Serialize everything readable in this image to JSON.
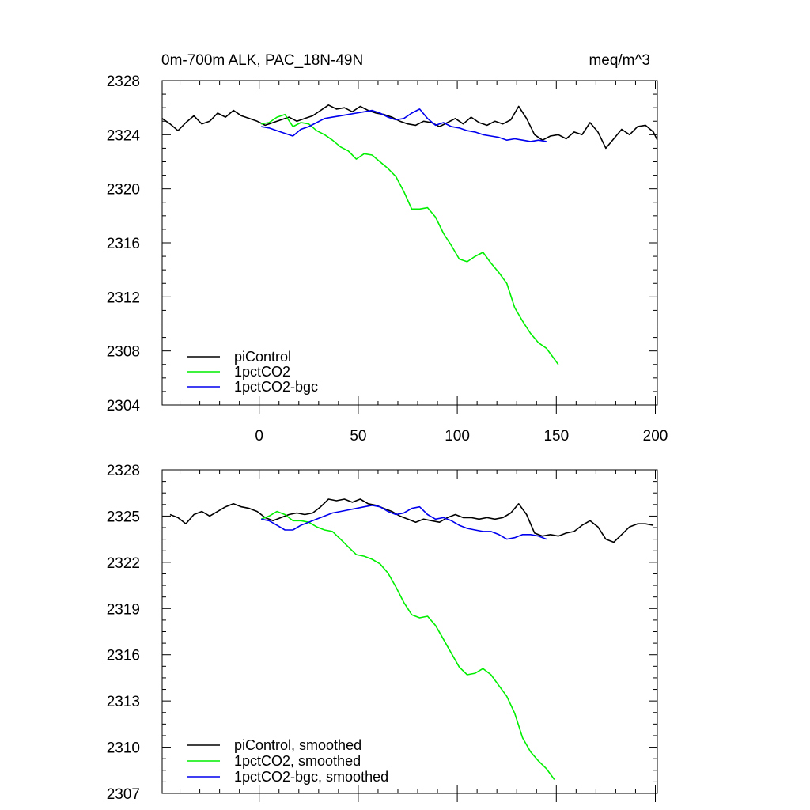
{
  "chart_data": [
    {
      "type": "line",
      "title": "0m-700m ALK, PAC_18N-49N",
      "units": "meq/m^3",
      "xlabel": "",
      "ylabel": "",
      "xlim": [
        -49,
        201
      ],
      "ylim": [
        2304,
        2328
      ],
      "xticks": [
        0,
        50,
        100,
        150,
        200
      ],
      "yticks": [
        2304,
        2308,
        2312,
        2316,
        2320,
        2324,
        2328
      ],
      "legend_position": "bottom-left",
      "series": [
        {
          "name": "piControl",
          "color": "#000000",
          "x": [
            -49,
            -45,
            -41,
            -37,
            -33,
            -29,
            -25,
            -21,
            -17,
            -13,
            -9,
            -5,
            -1,
            3,
            7,
            11,
            15,
            19,
            23,
            27,
            31,
            35,
            39,
            43,
            47,
            51,
            55,
            59,
            63,
            67,
            71,
            75,
            79,
            83,
            87,
            91,
            95,
            99,
            103,
            107,
            111,
            115,
            119,
            123,
            127,
            131,
            135,
            139,
            143,
            147,
            151,
            155,
            159,
            163,
            167,
            171,
            175,
            179,
            183,
            187,
            191,
            195,
            199,
            201
          ],
          "values": [
            2325.2,
            2324.8,
            2324.3,
            2324.9,
            2325.4,
            2324.8,
            2325.0,
            2325.6,
            2325.3,
            2325.8,
            2325.4,
            2325.2,
            2325.0,
            2324.7,
            2324.9,
            2325.1,
            2325.3,
            2325.0,
            2325.2,
            2325.4,
            2325.8,
            2326.2,
            2325.9,
            2326.0,
            2325.7,
            2326.1,
            2325.8,
            2325.6,
            2325.5,
            2325.3,
            2325.0,
            2324.8,
            2324.7,
            2325.0,
            2324.9,
            2324.6,
            2324.9,
            2325.2,
            2324.8,
            2325.3,
            2324.9,
            2324.7,
            2325.0,
            2324.8,
            2325.1,
            2326.1,
            2325.2,
            2324.0,
            2323.6,
            2323.9,
            2324.0,
            2323.7,
            2324.2,
            2324.0,
            2324.9,
            2324.2,
            2323.0,
            2323.7,
            2324.4,
            2324.0,
            2324.6,
            2324.7,
            2324.2,
            2323.6
          ]
        },
        {
          "name": "1pctCO2",
          "color": "#00ee00",
          "x": [
            1,
            5,
            9,
            13,
            17,
            21,
            25,
            29,
            33,
            37,
            41,
            45,
            49,
            53,
            57,
            61,
            65,
            69,
            73,
            77,
            81,
            85,
            89,
            93,
            97,
            101,
            105,
            109,
            113,
            117,
            121,
            125,
            129,
            133,
            137,
            141,
            145,
            149,
            151
          ],
          "values": [
            2324.8,
            2324.9,
            2325.3,
            2325.5,
            2324.6,
            2324.9,
            2324.8,
            2324.3,
            2324.0,
            2323.6,
            2323.1,
            2322.8,
            2322.2,
            2322.6,
            2322.5,
            2322.0,
            2321.5,
            2320.9,
            2319.8,
            2318.5,
            2318.5,
            2318.6,
            2317.9,
            2316.7,
            2315.8,
            2314.8,
            2314.6,
            2315.0,
            2315.3,
            2314.5,
            2313.8,
            2313.0,
            2311.2,
            2310.2,
            2309.3,
            2308.6,
            2308.2,
            2307.4,
            2307.0
          ]
        },
        {
          "name": "1pctCO2-bgc",
          "color": "#0000ee",
          "x": [
            1,
            5,
            9,
            13,
            17,
            21,
            25,
            29,
            33,
            37,
            41,
            45,
            49,
            53,
            57,
            61,
            65,
            69,
            73,
            77,
            81,
            85,
            89,
            93,
            97,
            101,
            105,
            109,
            113,
            117,
            121,
            125,
            129,
            133,
            137,
            141,
            145
          ],
          "values": [
            2324.6,
            2324.5,
            2324.3,
            2324.1,
            2323.9,
            2324.4,
            2324.6,
            2324.9,
            2325.2,
            2325.3,
            2325.4,
            2325.5,
            2325.6,
            2325.7,
            2325.8,
            2325.6,
            2325.3,
            2325.1,
            2325.2,
            2325.6,
            2325.9,
            2325.2,
            2324.7,
            2324.9,
            2324.6,
            2324.5,
            2324.3,
            2324.2,
            2324.0,
            2323.9,
            2323.8,
            2323.6,
            2323.7,
            2323.6,
            2323.5,
            2323.6,
            2323.5
          ]
        }
      ]
    },
    {
      "type": "line",
      "title": "",
      "xlabel": "",
      "ylabel": "",
      "xlim": [
        -49,
        201
      ],
      "ylim": [
        2307,
        2328
      ],
      "xticks": [
        0,
        50,
        100,
        150,
        200
      ],
      "yticks": [
        2307,
        2310,
        2313,
        2316,
        2319,
        2322,
        2325,
        2328
      ],
      "legend_position": "bottom-left",
      "series": [
        {
          "name": "piControl, smoothed",
          "color": "#000000",
          "x": [
            -45,
            -41,
            -37,
            -33,
            -29,
            -25,
            -21,
            -17,
            -13,
            -9,
            -5,
            -1,
            3,
            7,
            11,
            15,
            19,
            23,
            27,
            31,
            35,
            39,
            43,
            47,
            51,
            55,
            59,
            63,
            67,
            71,
            75,
            79,
            83,
            87,
            91,
            95,
            99,
            103,
            107,
            111,
            115,
            119,
            123,
            127,
            131,
            135,
            139,
            143,
            147,
            151,
            155,
            159,
            163,
            167,
            171,
            175,
            179,
            183,
            187,
            191,
            195,
            199
          ],
          "values": [
            2325.1,
            2324.9,
            2324.5,
            2325.1,
            2325.3,
            2325.0,
            2325.3,
            2325.6,
            2325.8,
            2325.6,
            2325.5,
            2325.3,
            2324.9,
            2324.7,
            2324.9,
            2325.1,
            2325.2,
            2325.1,
            2325.2,
            2325.6,
            2326.1,
            2326.0,
            2326.1,
            2325.9,
            2326.1,
            2325.8,
            2325.7,
            2325.5,
            2325.3,
            2325.0,
            2324.8,
            2324.6,
            2324.8,
            2324.7,
            2324.6,
            2324.9,
            2325.1,
            2324.9,
            2324.9,
            2324.8,
            2324.9,
            2324.8,
            2324.9,
            2325.2,
            2325.8,
            2325.1,
            2323.9,
            2323.7,
            2323.8,
            2323.7,
            2323.9,
            2324.0,
            2324.4,
            2324.7,
            2324.3,
            2323.5,
            2323.3,
            2323.8,
            2324.3,
            2324.5,
            2324.5,
            2324.4
          ]
        },
        {
          "name": "1pctCO2, smoothed",
          "color": "#00ee00",
          "x": [
            1,
            5,
            9,
            13,
            17,
            21,
            25,
            29,
            33,
            37,
            41,
            45,
            49,
            53,
            57,
            61,
            65,
            69,
            73,
            77,
            81,
            85,
            89,
            93,
            97,
            101,
            105,
            109,
            113,
            117,
            121,
            125,
            129,
            133,
            137,
            141,
            145,
            149
          ],
          "values": [
            2324.8,
            2325.0,
            2325.3,
            2325.1,
            2324.7,
            2324.7,
            2324.6,
            2324.3,
            2324.1,
            2324.0,
            2323.5,
            2323.0,
            2322.5,
            2322.4,
            2322.2,
            2321.9,
            2321.3,
            2320.4,
            2319.4,
            2318.6,
            2318.4,
            2318.5,
            2317.9,
            2317.0,
            2316.1,
            2315.2,
            2314.7,
            2314.8,
            2315.1,
            2314.7,
            2314.0,
            2313.3,
            2312.2,
            2310.6,
            2309.7,
            2309.1,
            2308.6,
            2307.9
          ]
        },
        {
          "name": "1pctCO2-bgc, smoothed",
          "color": "#0000ee",
          "x": [
            1,
            5,
            9,
            13,
            17,
            21,
            25,
            29,
            33,
            37,
            41,
            45,
            49,
            53,
            57,
            61,
            65,
            69,
            73,
            77,
            81,
            85,
            89,
            93,
            97,
            101,
            105,
            109,
            113,
            117,
            121,
            125,
            129,
            133,
            137,
            141,
            145
          ],
          "values": [
            2324.8,
            2324.7,
            2324.4,
            2324.1,
            2324.1,
            2324.4,
            2324.6,
            2324.8,
            2325.0,
            2325.2,
            2325.3,
            2325.4,
            2325.5,
            2325.6,
            2325.7,
            2325.6,
            2325.3,
            2325.1,
            2325.2,
            2325.5,
            2325.6,
            2325.1,
            2324.8,
            2324.9,
            2324.7,
            2324.4,
            2324.2,
            2324.1,
            2324.0,
            2324.0,
            2323.8,
            2323.5,
            2323.6,
            2323.8,
            2323.8,
            2323.7,
            2323.5
          ]
        }
      ]
    }
  ]
}
